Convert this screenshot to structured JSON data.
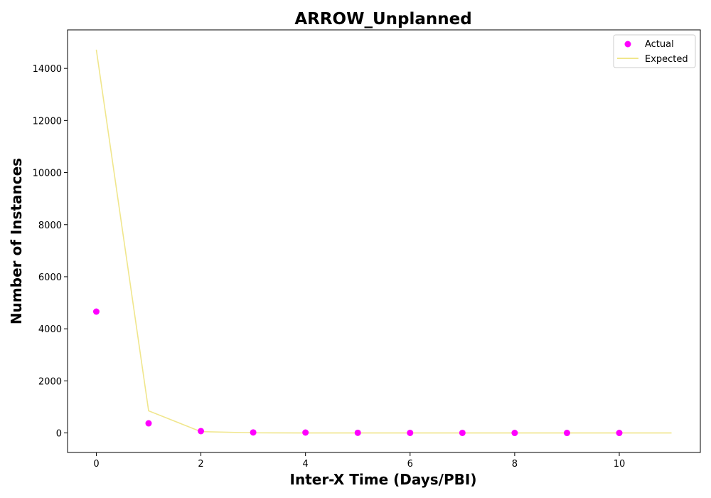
{
  "chart_data": {
    "type": "scatter",
    "title": "ARROW_Unplanned",
    "xlabel": "Inter-X Time (Days/PBI)",
    "ylabel": "Number of Instances",
    "xlim": [
      -0.55,
      11.55
    ],
    "ylim": [
      -750,
      15480
    ],
    "xticks": [
      0,
      2,
      4,
      6,
      8,
      10
    ],
    "yticks": [
      0,
      2000,
      4000,
      6000,
      8000,
      10000,
      12000,
      14000
    ],
    "grid": false,
    "legend_position": "top-right",
    "series": [
      {
        "name": "Actual",
        "kind": "scatter",
        "color": "#ff00ff",
        "x": [
          0,
          1,
          2,
          3,
          4,
          5,
          6,
          7,
          8,
          9,
          10
        ],
        "y": [
          4660,
          370,
          70,
          20,
          15,
          5,
          3,
          2,
          1,
          1,
          1
        ]
      },
      {
        "name": "Expected",
        "kind": "line",
        "color": "#f0e68c",
        "x": [
          0,
          1,
          2,
          3,
          4,
          5,
          6,
          7,
          8,
          9,
          10,
          11
        ],
        "y": [
          14720,
          850,
          50,
          5,
          1,
          0,
          0,
          0,
          0,
          0,
          0,
          0
        ]
      }
    ]
  }
}
